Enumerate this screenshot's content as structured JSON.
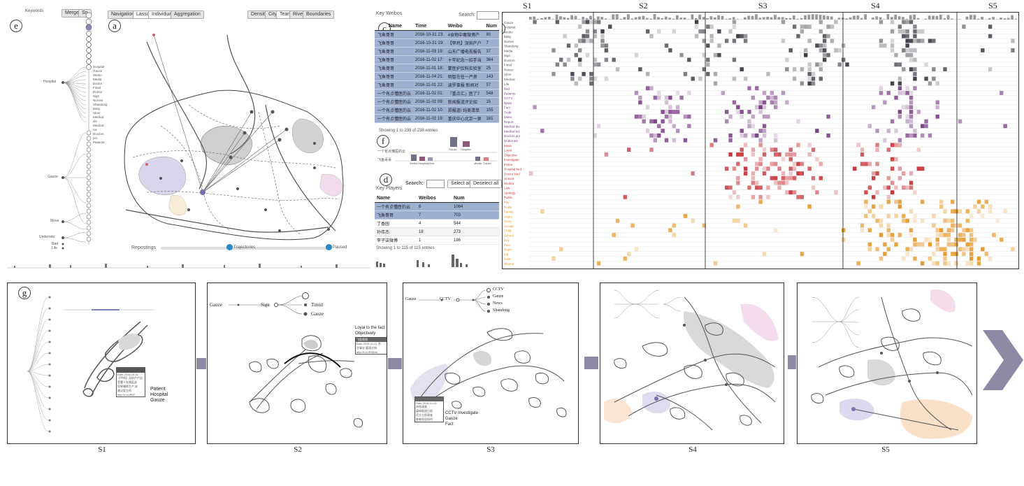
{
  "keywords_panel": {
    "title": "Keywords",
    "buttons": [
      "Merge",
      "Sn"
    ],
    "label_e": "e",
    "tree_groups": [
      "Hospital",
      "Gauze",
      "Move",
      "Underrate",
      "Bad",
      "Life"
    ],
    "leaves": [
      "Hospital",
      "Gauze",
      "Weibo",
      "Media",
      "Doctor",
      "Fimid",
      "Rumor",
      "Sign",
      "Nurses",
      "Shandong",
      "Baby",
      "Ulcer",
      "Medical dis",
      "Medical rec",
      "Doctors pro",
      "Patients"
    ]
  },
  "map_panel": {
    "label_a": "a",
    "mode_buttons": [
      "Navigation",
      "Lasso",
      "Individual",
      "Aggregation"
    ],
    "view_buttons": [
      "Density",
      "City",
      "Team",
      "River",
      "Boundaries"
    ],
    "slider_label": "Repostings",
    "slider_mid_label": "Trajectories",
    "slider_end_label": "Paused"
  },
  "key_weibos": {
    "label_c": "c",
    "title": "Key Weibos",
    "search_label": "Search:",
    "columns": [
      "Name",
      "Time",
      "Weibo",
      "Num"
    ],
    "rows": [
      [
        "飞鱼哥哥",
        "2016-10-31 23:",
        "4食物中毒微博产",
        "80"
      ],
      [
        "飞鱼哥哥",
        "2016-10-31 19:",
        "【甲鸡】深圳产户",
        "7"
      ],
      [
        "飞鱼哥哥",
        "2016-11-03 19:",
        "山东广播电视报告",
        "37"
      ],
      [
        "飞鱼哥哥",
        "2016-11-02 17:",
        "十年纪念一招手当",
        "364"
      ],
      [
        "飞鱼哥哥",
        "2016-11-01 18:",
        "蒙医护饮料实验室",
        "25"
      ],
      [
        "飞鱼哥哥",
        "2016-11-04 21:",
        "明智在任一严肃",
        "143"
      ],
      [
        "飞鱼哥哥",
        "2016-11-01 22:",
        "波罗事报 新闻对",
        "57"
      ],
      [
        "一个有点懂医的云",
        "2016-11-02 01:",
        "『重点汇』医了7",
        "548"
      ],
      [
        "一个有点懂医的云",
        "2016-11-02 09:",
        "新闻报道评论如",
        "15"
      ],
      [
        "一个有点懂医的云",
        "2016-11-02 10:",
        "郑报道! 纯美清单",
        "155"
      ],
      [
        "一个有点懂医的云",
        "2016-11-02 19:",
        "重庆中心北京一第",
        "181"
      ]
    ],
    "footer": "Showing 1 to 238 of 238 entries"
  },
  "repost_panel": {
    "label_f": "f",
    "user1": "一个有点懂医的云",
    "user2": "飞鱼哥哥",
    "bar_labels_top": [
      "Gauze",
      "Hospital"
    ],
    "bar_labels_bottom": [
      "Weibo",
      "Hospital",
      "Ulcer",
      "Media",
      "Gauze"
    ]
  },
  "key_players": {
    "label_d": "d",
    "title": "Key Players",
    "search_label": "Search:",
    "select_all": "Select all",
    "deselect_all": "Deselect all",
    "columns": [
      "Name",
      "Weibos",
      "Num"
    ],
    "rows": [
      [
        "一个有点懂医的云",
        "6",
        "1064"
      ],
      [
        "飞鱼哥哥",
        "7",
        "703"
      ],
      [
        "丁香园",
        "4",
        "544"
      ],
      [
        "孙伟杰",
        "18",
        "273"
      ],
      [
        "李子柒微博",
        "1",
        "186"
      ]
    ],
    "footer": "Showing 1 to 115 of 115 entries"
  },
  "timeline_panel": {
    "label_b": "b",
    "stage_labels": [
      "S1",
      "S2",
      "S3",
      "S4",
      "S5"
    ],
    "row_labels": [
      "Gauze",
      "Hospital",
      "Weibo",
      "Baby",
      "Nurses",
      "Shandong",
      "Media",
      "Sign",
      "Doctors",
      "Fimid",
      "Rumor",
      "Ulcer",
      "Medical",
      "Life",
      "Bad",
      "Patients",
      "CCTV",
      "News",
      "Fact",
      "Truth",
      "Video",
      "Report",
      "Medical dis",
      "Medical rec",
      "Doctors pro",
      "Underrate",
      "Move",
      "Loyal",
      "Objective",
      "Investigate",
      "Police",
      "Hospital bed",
      "Doctor kind",
      "Unsure",
      "Worker",
      "Law",
      "Apology",
      "Public",
      "Pity",
      "Reply",
      "Family",
      "Angry",
      "Sorry",
      "Accept",
      "Child",
      "School",
      "Boy",
      "Pain",
      "Team",
      "Kill",
      "Joke",
      "Shame"
    ]
  },
  "snapshots": {
    "label_g": "g",
    "captions": [
      "S1",
      "S2",
      "S3",
      "S4",
      "S5"
    ],
    "s1_tooltip": {
      "lines": [
        "Date 2016-10-31",
        "【甲鸡】深圳产户自",
        "签署十年属疫苗",
        "如果辅助生产,安",
        "建议医生的",
        "http://t.cn/R5Y"
      ]
    },
    "s1_annot": [
      "Patient",
      "Hospital",
      "Gauze"
    ],
    "s2_tree": {
      "root": "Gauze",
      "mid": "Sign",
      "leaves": [
        "Timid",
        "Gauze"
      ]
    },
    "s2_annot": [
      "Loyal to the fact",
      "Objectively treated"
    ],
    "s2_tooltip": {
      "lines": [
        "飞鱼哥哥",
        "Date 2016-11-01 名",
        "字事实 客观对待",
        "http://t.cn/RHjWs"
      ]
    },
    "s3_tree": {
      "root": "Gauze",
      "mid": "CCTV",
      "leaves": [
        "CCTV",
        "Gauze",
        "News",
        "Shandong"
      ]
    },
    "s3_annot": [
      "CCTV Investigate",
      "Gauze",
      "Fact"
    ],
    "s3_tooltip": {
      "lines": [
        "Date 2016-11-02",
        "央视调查",
        "媒体报道引起",
        "官方立即调查",
        "患者权益如何"
      ]
    }
  },
  "colors": {
    "selection_blue": "#9db0cf",
    "purple": "#7a3e86",
    "red": "#c8383e",
    "orange": "#e59a2a",
    "connector": "#8d8aa6"
  }
}
